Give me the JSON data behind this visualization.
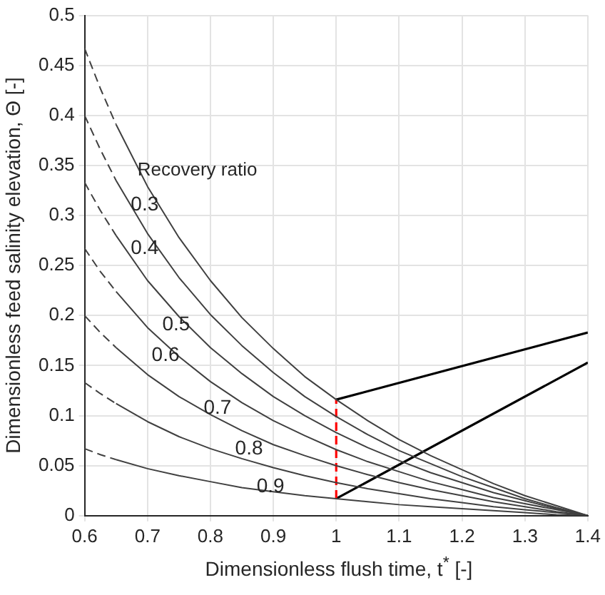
{
  "chart_data": {
    "type": "line",
    "xlabel": "Dimensionless flush time, t$^{*}$ [-]",
    "ylabel": "Dimensionless feed salinity elevation, Θ [-]",
    "legend_title": "Recovery ratio",
    "x": [
      0.65,
      0.7,
      0.75,
      0.8,
      0.85,
      0.9,
      0.95,
      1,
      1.05,
      1.1,
      1.15,
      1.2,
      1.25,
      1.3,
      1.35,
      1.4
    ],
    "xlim": [
      0.6,
      1.4
    ],
    "xticks": [
      0.6,
      0.7,
      0.8,
      0.9,
      1,
      1.1,
      1.2,
      1.3,
      1.4
    ],
    "ylim": [
      0,
      0.5
    ],
    "yticks": [
      0,
      0.05,
      0.1,
      0.15,
      0.2,
      0.25,
      0.3,
      0.35,
      0.4,
      0.45,
      0.5
    ],
    "grid": true,
    "legend": false,
    "marker": "none",
    "series": [
      {
        "name": "0.3",
        "color": "#404040",
        "line_style": "solid",
        "values": [
          0.391,
          0.329,
          0.278,
          0.235,
          0.198,
          0.167,
          0.139,
          0.116,
          0.095,
          0.076,
          0.06,
          0.046,
          0.032,
          0.02,
          0.01,
          0
        ]
      },
      {
        "name": "0.4",
        "color": "#404040",
        "line_style": "solid",
        "values": [
          0.335,
          0.282,
          0.238,
          0.201,
          0.17,
          0.143,
          0.119,
          0.099,
          0.081,
          0.065,
          0.052,
          0.039,
          0.028,
          0.017,
          0.008,
          0
        ]
      },
      {
        "name": "0.5",
        "color": "#404040",
        "line_style": "solid",
        "values": [
          0.28,
          0.235,
          0.199,
          0.168,
          0.142,
          0.119,
          0.1,
          0.083,
          0.068,
          0.055,
          0.043,
          0.033,
          0.023,
          0.015,
          0.007,
          0
        ]
      },
      {
        "name": "0.6",
        "color": "#404040",
        "line_style": "solid",
        "values": [
          0.224,
          0.188,
          0.159,
          0.134,
          0.113,
          0.095,
          0.08,
          0.066,
          0.054,
          0.044,
          0.034,
          0.026,
          0.018,
          0.012,
          0.006,
          0
        ]
      },
      {
        "name": "0.7",
        "color": "#404040",
        "line_style": "solid",
        "values": [
          0.168,
          0.141,
          0.119,
          0.101,
          0.085,
          0.071,
          0.06,
          0.05,
          0.041,
          0.033,
          0.026,
          0.02,
          0.014,
          0.009,
          0.004,
          0
        ]
      },
      {
        "name": "0.8",
        "color": "#404040",
        "line_style": "solid",
        "values": [
          0.112,
          0.094,
          0.079,
          0.067,
          0.057,
          0.048,
          0.04,
          0.033,
          0.027,
          0.022,
          0.017,
          0.013,
          0.009,
          0.006,
          0.003,
          0
        ]
      },
      {
        "name": "0.9",
        "color": "#404040",
        "line_style": "solid",
        "values": [
          0.056,
          0.047,
          0.04,
          0.034,
          0.028,
          0.024,
          0.02,
          0.017,
          0.014,
          0.011,
          0.009,
          0.007,
          0.005,
          0.003,
          0.001,
          0
        ]
      },
      {
        "color": "#404040",
        "line_style": "dashed",
        "x": [
          0.6,
          0.625,
          0.65
        ],
        "values": [
          0.467,
          0.427,
          0.391
        ]
      },
      {
        "color": "#404040",
        "line_style": "dashed",
        "x": [
          0.6,
          0.625,
          0.65
        ],
        "values": [
          0.4,
          0.366,
          0.335
        ]
      },
      {
        "color": "#404040",
        "line_style": "dashed",
        "x": [
          0.6,
          0.625,
          0.65
        ],
        "values": [
          0.333,
          0.305,
          0.28
        ]
      },
      {
        "color": "#404040",
        "line_style": "dashed",
        "x": [
          0.6,
          0.625,
          0.65
        ],
        "values": [
          0.267,
          0.244,
          0.224
        ]
      },
      {
        "color": "#404040",
        "line_style": "dashed",
        "x": [
          0.6,
          0.625,
          0.65
        ],
        "values": [
          0.2,
          0.183,
          0.168
        ]
      },
      {
        "color": "#404040",
        "line_style": "dashed",
        "x": [
          0.6,
          0.625,
          0.65
        ],
        "values": [
          0.133,
          0.122,
          0.112
        ]
      },
      {
        "color": "#404040",
        "line_style": "dashed",
        "x": [
          0.6,
          0.625,
          0.65
        ],
        "values": [
          0.067,
          0.061,
          0.056
        ]
      },
      {
        "color": "#ff0000",
        "line_style": "dashed",
        "x": [
          1,
          1
        ],
        "values": [
          0.017,
          0.116
        ]
      },
      {
        "color": "#000000",
        "line_style": "solid",
        "x": [
          1,
          1.4
        ],
        "values": [
          0.116,
          0.183
        ]
      },
      {
        "color": "#000000",
        "line_style": "solid",
        "x": [
          1,
          1.4
        ],
        "values": [
          0.017,
          0.153
        ]
      }
    ]
  }
}
